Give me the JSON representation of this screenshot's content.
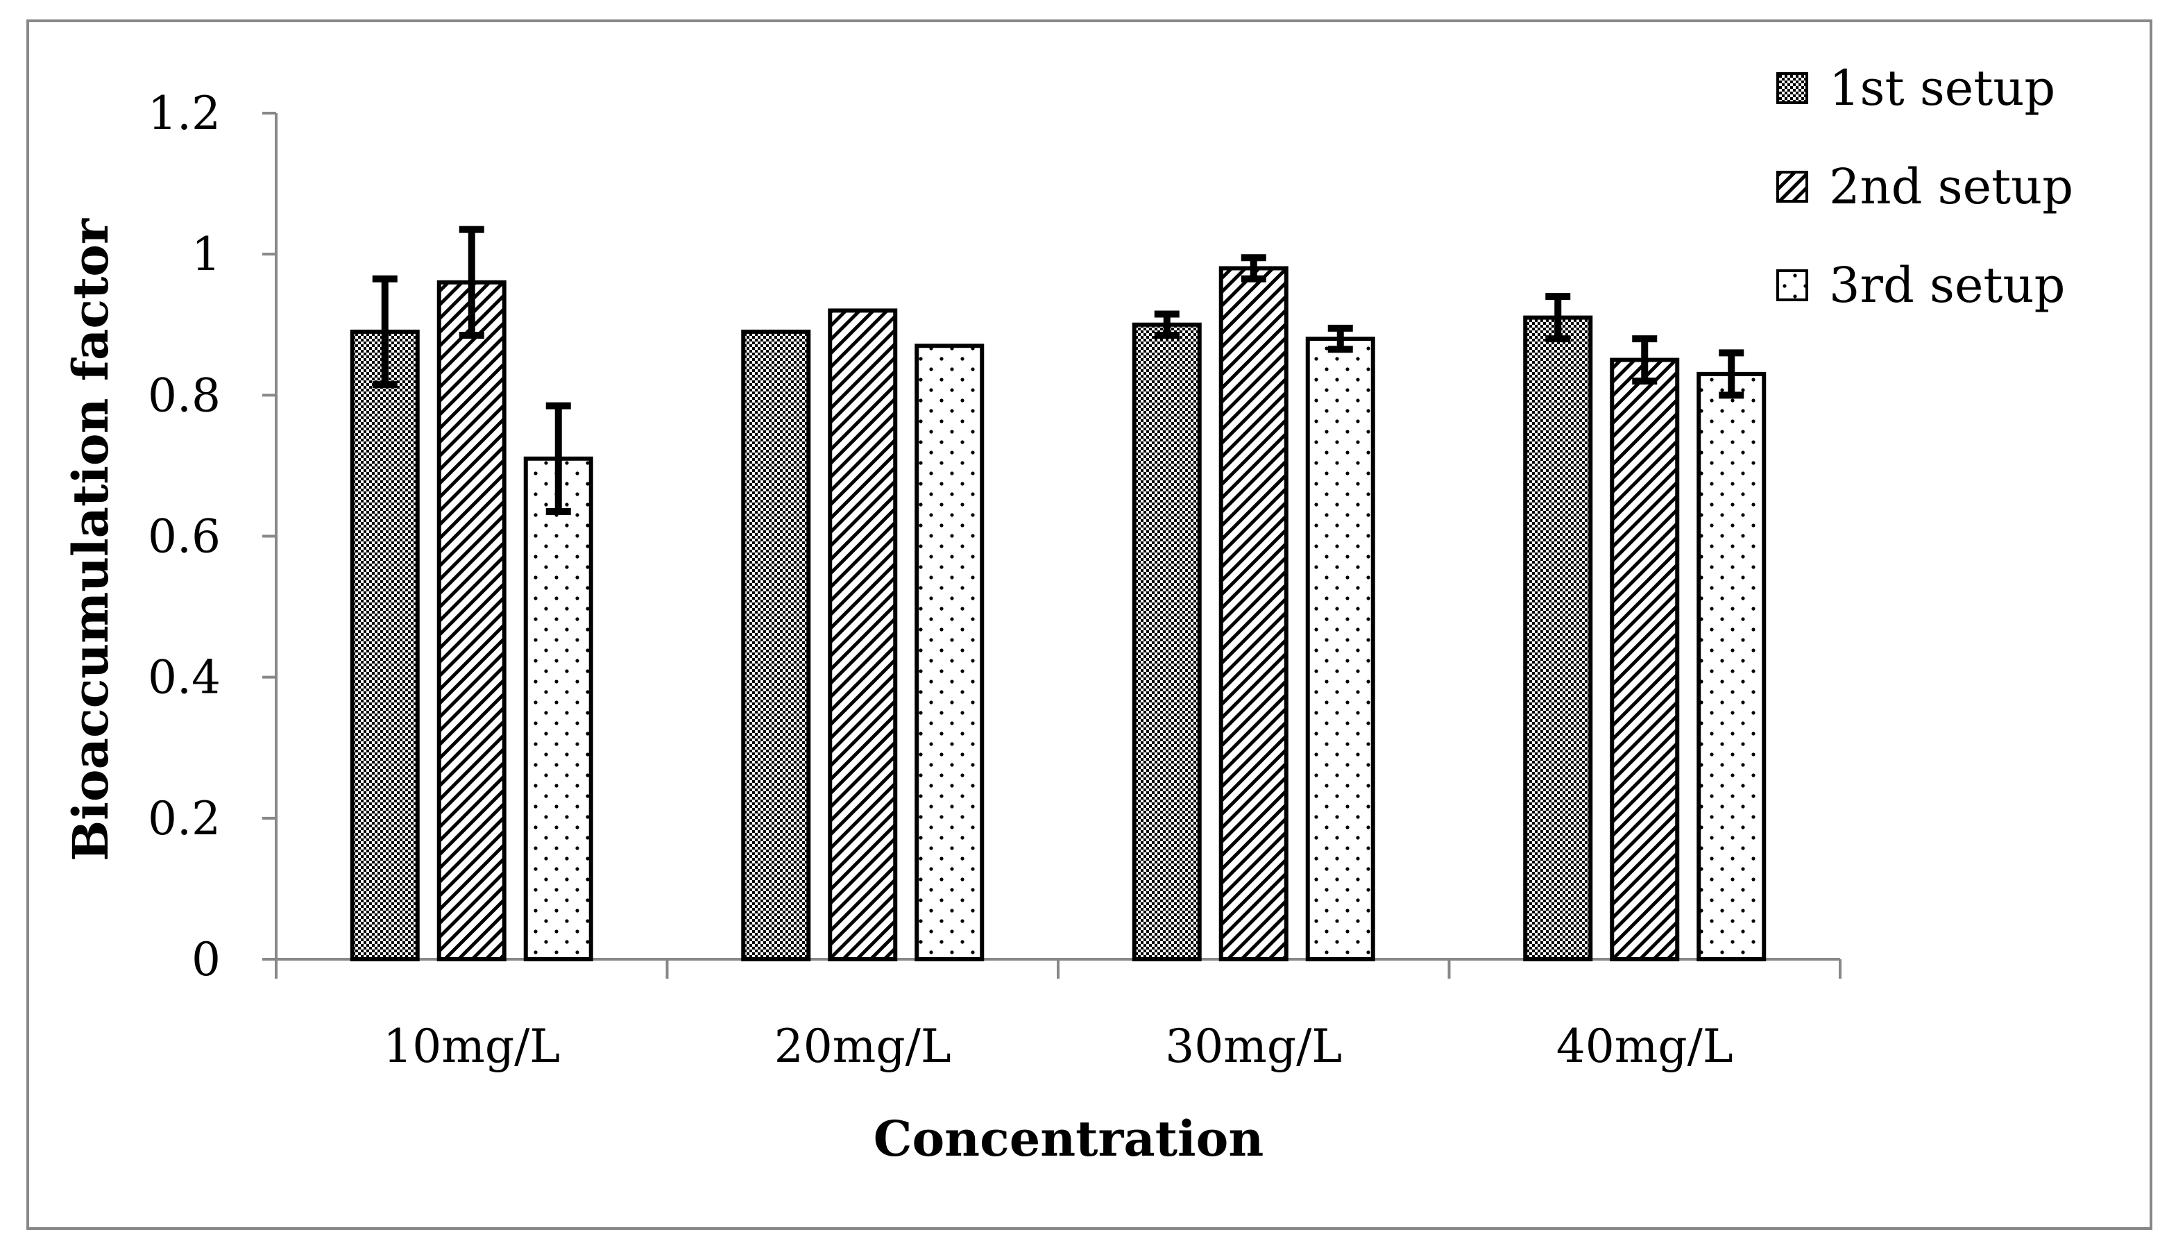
{
  "chart_data": {
    "type": "bar",
    "title": "",
    "xlabel": "Concentration",
    "ylabel": "Bioaccumulation factor",
    "ylim": [
      0,
      1.2
    ],
    "yticks": [
      "0",
      "0.2",
      "0.4",
      "0.6",
      "0.8",
      "1",
      "1.2"
    ],
    "categories": [
      "10mg/L",
      "20mg/L",
      "30mg/L",
      "40mg/L"
    ],
    "legend_position": "top-right",
    "series": [
      {
        "name": "1st setup",
        "pattern": "checker",
        "values": [
          0.89,
          0.89,
          0.9,
          0.91
        ],
        "errors": [
          0.075,
          0,
          0.015,
          0.03
        ]
      },
      {
        "name": "2nd setup",
        "pattern": "diagonal",
        "values": [
          0.96,
          0.92,
          0.98,
          0.85
        ],
        "errors": [
          0.075,
          0,
          0.015,
          0.03
        ]
      },
      {
        "name": "3rd setup",
        "pattern": "dots",
        "values": [
          0.71,
          0.87,
          0.88,
          0.83
        ],
        "errors": [
          0.075,
          0,
          0.015,
          0.03
        ]
      }
    ],
    "colors": {
      "frame": "#888888",
      "axis": "#888888",
      "bar_stroke": "#000000",
      "fill": "#ffffff",
      "ink": "#000000"
    }
  }
}
